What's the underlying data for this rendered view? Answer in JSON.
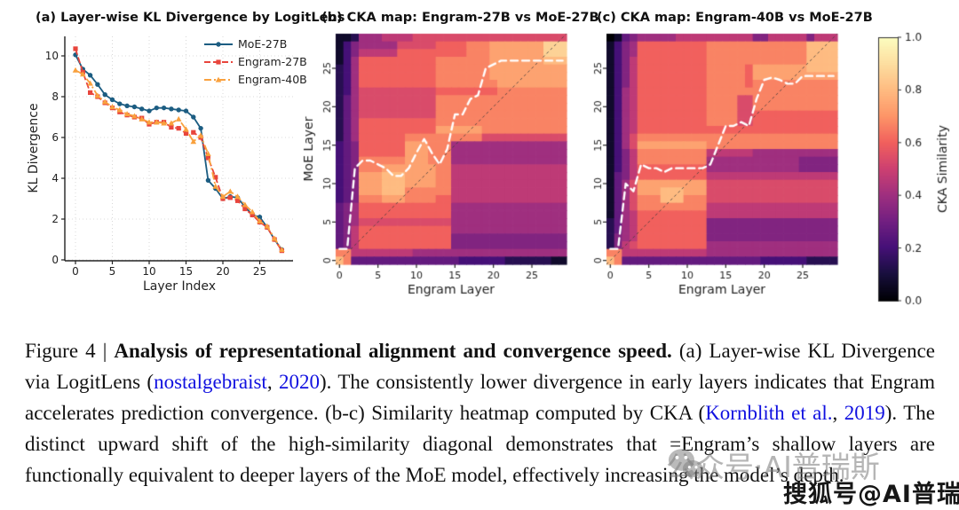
{
  "chart_data": [
    {
      "type": "line",
      "title": "(a) Layer-wise KL Divergence by LogitLens",
      "xlabel": "Layer Index",
      "ylabel": "KL Divergence",
      "xticks": [
        0,
        5,
        10,
        15,
        20,
        25
      ],
      "yticks": [
        0,
        2,
        4,
        6,
        8,
        10
      ],
      "xlim": [
        0,
        28
      ],
      "ylim": [
        0,
        10.6
      ],
      "grid": true,
      "legend_position": "upper right",
      "x": [
        0,
        1,
        2,
        3,
        4,
        5,
        6,
        7,
        8,
        9,
        10,
        11,
        12,
        13,
        14,
        15,
        16,
        17,
        18,
        19,
        20,
        21,
        22,
        23,
        24,
        25,
        26,
        27,
        28
      ],
      "series": [
        {
          "name": "MoE-27B",
          "color": "#1c5d82",
          "linestyle": "solid",
          "marker": "circle",
          "values": [
            10.05,
            9.35,
            9.05,
            8.6,
            8.1,
            7.85,
            7.65,
            7.55,
            7.5,
            7.4,
            7.3,
            7.45,
            7.45,
            7.4,
            7.35,
            7.3,
            7.0,
            6.45,
            3.9,
            3.5,
            3.0,
            3.1,
            3.05,
            2.6,
            2.2,
            2.1,
            1.6,
            1.0,
            0.5
          ]
        },
        {
          "name": "Engram-27B",
          "color": "#e8453c",
          "linestyle": "dashed",
          "marker": "square",
          "values": [
            10.35,
            9.2,
            8.2,
            8.0,
            7.7,
            7.45,
            7.25,
            7.1,
            7.0,
            6.95,
            6.65,
            6.75,
            6.75,
            6.5,
            6.45,
            6.2,
            6.25,
            6.0,
            5.0,
            4.05,
            3.0,
            3.05,
            2.9,
            2.5,
            2.2,
            1.85,
            1.6,
            1.0,
            0.45
          ]
        },
        {
          "name": "Engram-40B",
          "color": "#f9a13e",
          "linestyle": "dashdot",
          "marker": "triangle",
          "values": [
            9.3,
            9.1,
            8.65,
            8.05,
            7.75,
            7.5,
            7.35,
            7.15,
            7.05,
            6.9,
            6.75,
            6.75,
            6.7,
            6.7,
            6.9,
            6.4,
            5.8,
            6.1,
            5.2,
            3.6,
            3.1,
            3.35,
            3.1,
            2.7,
            2.35,
            1.9,
            1.65,
            1.05,
            0.5
          ]
        }
      ]
    },
    {
      "type": "heatmap",
      "title": "(b) CKA map: Engram-27B vs MoE-27B",
      "xlabel": "Engram Layer",
      "ylabel": "MoE Layer",
      "xticks": [
        0,
        5,
        10,
        15,
        20,
        25
      ],
      "yticks": [
        0,
        5,
        10,
        15,
        20,
        25
      ],
      "size": 30,
      "colormap": "magma",
      "value_scale": "hex digit 0-15 mapped to CKA 0-1, rows listed top (MoE layer 29) to bottom (0)",
      "rows": [
        "112666777788888888888888888888",
        "13566666888889999aaabbbbbbbddd",
        "13577777999999999aaabbbbbbbddd",
        "1369999999999aaaaaaabbbbbbbccc",
        "2369999999999aaaaaaabbbbbbbbbb",
        "2369999999999aaaaaaabbbbbbbbbb",
        "2369999999999aaaaaaaabbbbbbbbb",
        "236888888888899999999aaaaaaaaa",
        "2468888888888aaaaaaaaaaaaaaaaa",
        "2468888888888aaaaaaaaaaaaaaaaa",
        "2468888888888aaaaaaaaaaaaaaaaa",
        "2469999999999aaaaaaaaaaaaaaaaa",
        "2469999999999bbbbbbaaaaaaaaaaa",
        "246999999aaaaaaaaaa88888888888",
        "345999999bbbaaa666666666666666",
        "345999999bbbaaa666666666666666",
        "345aaaaaabbbaaa666666666666666",
        "345aaabbbbbbbaa777777777777777",
        "345bbbcccbbbbaa777777777777777",
        "345bbbcccbbbbaa777777777777777",
        "345bbbcccaaaaaa777777777777777",
        "345aaabbbaaaa99777777777777777",
        "456999999999999666666666666666",
        "456999999999999666666666666666",
        "456888888888888666666666666666",
        "457999999999999666666666666666",
        "457999999999999555555555555555",
        "457999999999999555555555555555",
        "aa7777777766666666666666666666",
        "ca4444444444444433333322222211"
      ],
      "argmax_path": [
        1.5,
        1.5,
        12,
        13,
        13,
        12.5,
        12,
        11,
        11,
        12,
        14,
        15.8,
        14,
        12.5,
        14.5,
        19,
        19,
        21,
        21.5,
        25,
        25.5,
        26,
        26,
        26,
        26,
        26,
        26,
        26,
        26,
        26
      ],
      "path_color": "#ffffff",
      "diagonal_color": "#3c3c3c"
    },
    {
      "type": "heatmap",
      "title": "(c) CKA map: Engram-40B vs MoE-27B",
      "xlabel": "Engram Layer",
      "ylabel": "",
      "xticks": [
        0,
        5,
        10,
        15,
        20,
        25
      ],
      "yticks": [
        0,
        5,
        10,
        15,
        20,
        25
      ],
      "size": 30,
      "colormap": "magma",
      "value_scale": "hex digit 0-15 mapped to CKA 0-1, rows listed top (MoE layer 29) to bottom (0)",
      "rows": [
        "014566666777777777755777775777",
        "1356999999999aaaaaaaaaaaaacccc",
        "1356999999999aaaaaaaaaaaaacccc",
        "1357999999999aaaaaaaaaaaaacccc",
        "1357999999999aaaaa9bbbbbbbcccc",
        "1357999999999aaaaa9bbbbbbbbbbb",
        "1357999999999aaaaa9aaaaaaaaaaa",
        "1367999999999aaaaaaaaaaaaaaaaa",
        "1367999999999aaaa88aaaaaaaaaaa",
        "1367999999999aaaa88aaaaaaaaaaa",
        "1367999999999aaaa8899999999999",
        "1367999999999aaaa8899999999999",
        "136799999999999999999999999999",
        "1368aaaaaaaaaaaaaaaaaaaaaaaaaa",
        "1368bbbbbbbbbaaaaaaaaaaaaaaaaa",
        "1357aaaaaaaaa77777766666666666",
        "1357aaaaaaaaa66666666666655555",
        "135799999999966666666666655555",
        "145799999999977777777777777777",
        "1468bbbbbbbbb88888888888888888",
        "1468bbbcccbbb88888888888888888",
        "1468aaacccaaa88888888888888888",
        "1468aaaaaaaaa77777777777777777",
        "146799999999977777777777777777",
        "246799999999955555555555555555",
        "246799999999955555555555555555",
        "256799999999955555555555555555",
        "257899999999966666666666666666",
        "aa7777777777766666666666666666",
        "ca4444444444444444443333332222"
      ],
      "argmax_path": [
        1.5,
        1.5,
        10,
        9,
        12.5,
        12,
        12,
        11.5,
        12,
        12,
        12,
        12,
        12,
        12.5,
        15,
        17.5,
        17.5,
        18,
        17.5,
        21,
        23.5,
        23.8,
        23.5,
        23,
        23,
        24,
        24,
        24,
        24,
        24
      ],
      "path_color": "#ffffff",
      "diagonal_color": "#3c3c3c"
    }
  ],
  "colorbar": {
    "label": "CKA Similarity",
    "ticks": [
      "0.0",
      "0.2",
      "0.4",
      "0.6",
      "0.8",
      "1.0"
    ],
    "magma_stops": [
      "#000004",
      "#180f3e",
      "#451077",
      "#721f81",
      "#9f2f7f",
      "#cd4071",
      "#f1605d",
      "#fd9567",
      "#febb81",
      "#fddea0",
      "#fcfdbf"
    ]
  },
  "caption": {
    "link_color": "#1111e0",
    "segments": [
      {
        "t": "Figure 4 | ",
        "s": "normal"
      },
      {
        "t": "Analysis of representational alignment and convergence speed.",
        "s": "bold"
      },
      {
        "t": " (a) Layer-wise KL Divergence via LogitLens (",
        "s": "normal"
      },
      {
        "t": "nostalgebraist",
        "s": "link"
      },
      {
        "t": ", ",
        "s": "normal"
      },
      {
        "t": "2020",
        "s": "link"
      },
      {
        "t": ").  The consistently lower divergence in early layers indicates that Engram accelerates prediction convergence.  (b-c) Similarity heatmap computed by CKA (",
        "s": "normal"
      },
      {
        "t": "Kornblith et al.",
        "s": "link"
      },
      {
        "t": ", ",
        "s": "normal"
      },
      {
        "t": "2019",
        "s": "link"
      },
      {
        "t": ").  The distinct upward shift of the high-similarity diagonal demonstrates that =Engram’s shallow layers are functionally equivalent to deeper layers of the MoE model, effectively increasing the model’s depth.",
        "s": "normal"
      }
    ]
  },
  "watermark": {
    "wechat_text": "公众号·AI普瑞斯",
    "sohu_text": "搜狐号@AI普瑞斯"
  }
}
